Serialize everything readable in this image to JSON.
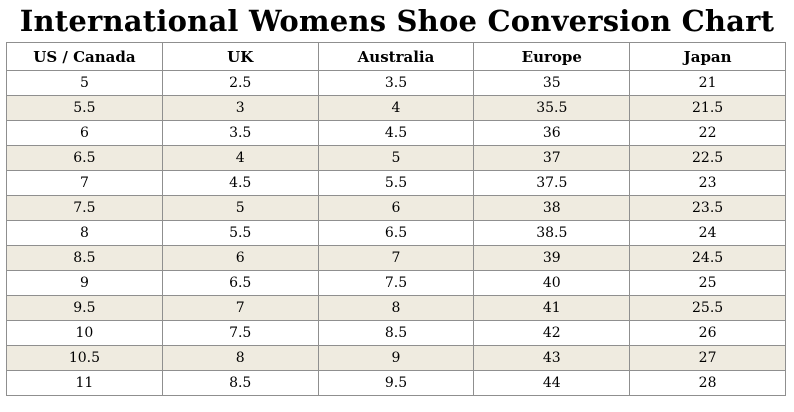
{
  "title": "International Womens Shoe Conversion Chart",
  "columns": [
    "US / Canada",
    "UK",
    "Australia",
    "Europe",
    "Japan"
  ],
  "colors": {
    "shaded_row": "#efebe0",
    "border": "#8f8f8f",
    "text": "#000000"
  },
  "rows": [
    [
      "5",
      "2.5",
      "3.5",
      "35",
      "21"
    ],
    [
      "5.5",
      "3",
      "4",
      "35.5",
      "21.5"
    ],
    [
      "6",
      "3.5",
      "4.5",
      "36",
      "22"
    ],
    [
      "6.5",
      "4",
      "5",
      "37",
      "22.5"
    ],
    [
      "7",
      "4.5",
      "5.5",
      "37.5",
      "23"
    ],
    [
      "7.5",
      "5",
      "6",
      "38",
      "23.5"
    ],
    [
      "8",
      "5.5",
      "6.5",
      "38.5",
      "24"
    ],
    [
      "8.5",
      "6",
      "7",
      "39",
      "24.5"
    ],
    [
      "9",
      "6.5",
      "7.5",
      "40",
      "25"
    ],
    [
      "9.5",
      "7",
      "8",
      "41",
      "25.5"
    ],
    [
      "10",
      "7.5",
      "8.5",
      "42",
      "26"
    ],
    [
      "10.5",
      "8",
      "9",
      "43",
      "27"
    ],
    [
      "11",
      "8.5",
      "9.5",
      "44",
      "28"
    ]
  ]
}
